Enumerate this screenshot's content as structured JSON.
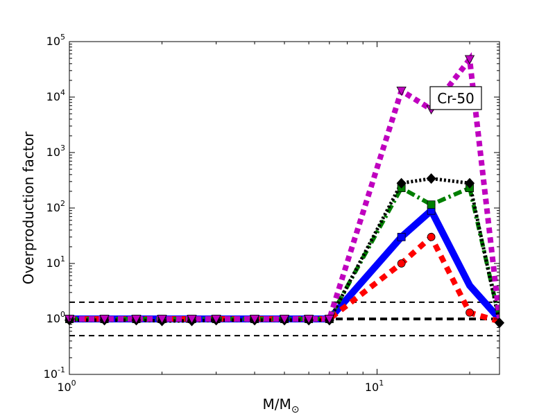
{
  "chart_data": {
    "type": "line",
    "title": "",
    "xlabel": "M/M",
    "xlabel_sub": "⊙",
    "ylabel": "Overproduction factor",
    "xscale": "log",
    "yscale": "log",
    "xlim": [
      1,
      25
    ],
    "ylim": [
      0.1,
      100000
    ],
    "grid": false,
    "annotation": "Cr-50",
    "x_ticks": [
      {
        "value": 1,
        "base": "10",
        "exp": "0"
      },
      {
        "value": 10,
        "base": "10",
        "exp": "1"
      }
    ],
    "y_ticks": [
      {
        "value": 0.1,
        "base": "10",
        "exp": "-1"
      },
      {
        "value": 1,
        "base": "10",
        "exp": "0"
      },
      {
        "value": 10,
        "base": "10",
        "exp": "1"
      },
      {
        "value": 100,
        "base": "10",
        "exp": "2"
      },
      {
        "value": 1000,
        "base": "10",
        "exp": "3"
      },
      {
        "value": 10000,
        "base": "10",
        "exp": "4"
      },
      {
        "value": 100000,
        "base": "10",
        "exp": "5"
      }
    ],
    "reference_lines": [
      {
        "y": 2,
        "color": "#000000",
        "width": 2,
        "dash": "8,6"
      },
      {
        "y": 1,
        "color": "#000000",
        "width": 4,
        "dash": "10,6"
      },
      {
        "y": 0.5,
        "color": "#000000",
        "width": 2,
        "dash": "8,6"
      }
    ],
    "series": [
      {
        "color": "#0000ff",
        "marker": "square",
        "line_width": 10,
        "dash": "",
        "marker_at": [
          0,
          1,
          2,
          3,
          4,
          5,
          6,
          7,
          8,
          9,
          10,
          11
        ],
        "x": [
          1,
          1.3,
          1.65,
          2,
          2.5,
          3,
          4,
          5,
          6,
          7,
          12,
          15,
          20,
          25
        ],
        "y": [
          1,
          1,
          1,
          1,
          1,
          1,
          1,
          1,
          1,
          1,
          30,
          90,
          4,
          1
        ]
      },
      {
        "color": "#ff0000",
        "marker": "circle",
        "line_width": 8,
        "dash": "10,8",
        "marker_at": [
          0,
          1,
          2,
          3,
          4,
          5,
          6,
          7,
          8,
          9,
          10,
          11,
          12
        ],
        "x": [
          1,
          1.3,
          1.65,
          2,
          2.5,
          3,
          4,
          5,
          6,
          7,
          12,
          15,
          20,
          25
        ],
        "y": [
          1,
          1,
          1,
          1,
          1,
          1,
          1,
          1,
          1,
          1,
          10,
          30,
          1.3,
          0.9
        ]
      },
      {
        "color": "#007f00",
        "marker": "square",
        "line_width": 6,
        "dash": "12,5,3,5",
        "marker_at": [
          0,
          1,
          2,
          3,
          4,
          5,
          6,
          7,
          8,
          9,
          10,
          11,
          12
        ],
        "x": [
          1,
          1.3,
          1.65,
          2,
          2.5,
          3,
          4,
          5,
          6,
          7,
          12,
          15,
          20,
          25
        ],
        "y": [
          1,
          1,
          1,
          1,
          1,
          1,
          1,
          1,
          1,
          1,
          230,
          115,
          230,
          1
        ]
      },
      {
        "color": "#000000",
        "marker": "diamond",
        "line_width": 5,
        "dash": "3,3",
        "marker_at": [
          0,
          1,
          2,
          3,
          4,
          5,
          6,
          7,
          8,
          9,
          10,
          11,
          12,
          13
        ],
        "x": [
          1,
          1.3,
          1.65,
          2,
          2.5,
          3,
          4,
          5,
          6,
          7,
          12,
          15,
          20,
          25
        ],
        "y": [
          0.95,
          0.95,
          0.95,
          0.92,
          0.92,
          0.95,
          0.95,
          0.95,
          0.95,
          0.95,
          280,
          340,
          280,
          0.85
        ]
      },
      {
        "color": "#bf00bf",
        "marker": "triangle-down",
        "line_width": 8,
        "dash": "8,6",
        "marker_at": [
          0,
          1,
          2,
          3,
          4,
          5,
          6,
          7,
          8,
          9,
          10,
          11,
          12
        ],
        "x": [
          1,
          1.3,
          1.65,
          2,
          2.5,
          3,
          4,
          5,
          6,
          7,
          12,
          15,
          20,
          25
        ],
        "y": [
          1,
          1,
          1,
          1,
          1,
          1,
          1,
          1,
          1,
          1,
          13000,
          6000,
          48000,
          1
        ]
      }
    ]
  }
}
